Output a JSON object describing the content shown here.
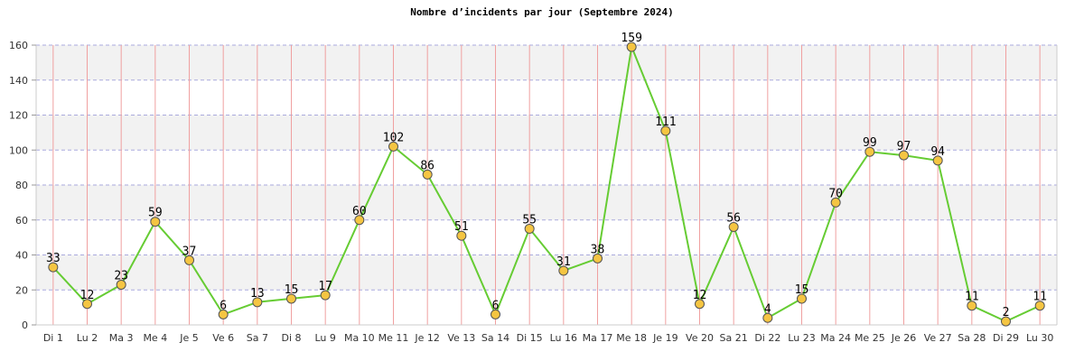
{
  "chart_data": {
    "type": "line",
    "title": "Nombre d’incidents par jour (Septembre 2024)",
    "xlabel": "",
    "ylabel": "",
    "ylim": [
      0,
      160
    ],
    "yticks": [
      0,
      20,
      40,
      60,
      80,
      100,
      120,
      140,
      160
    ],
    "grid": true,
    "categories": [
      "Di 1",
      "Lu 2",
      "Ma 3",
      "Me 4",
      "Je 5",
      "Ve 6",
      "Sa 7",
      "Di 8",
      "Lu 9",
      "Ma 10",
      "Me 11",
      "Je 12",
      "Ve 13",
      "Sa 14",
      "Di 15",
      "Lu 16",
      "Ma 17",
      "Me 18",
      "Je 19",
      "Ve 20",
      "Sa 21",
      "Di 22",
      "Lu 23",
      "Ma 24",
      "Me 25",
      "Je 26",
      "Ve 27",
      "Sa 28",
      "Di 29",
      "Lu 30"
    ],
    "series": [
      {
        "values": [
          33,
          12,
          23,
          59,
          37,
          6,
          13,
          15,
          17,
          60,
          102,
          86,
          51,
          6,
          55,
          31,
          38,
          159,
          111,
          12,
          56,
          4,
          15,
          70,
          99,
          97,
          94,
          11,
          2,
          11
        ]
      }
    ],
    "colors": {
      "line": "#66cc33",
      "marker_fill": "#f5c542",
      "marker_stroke": "#555555",
      "band_light": "#ffffff",
      "band_dark": "#f2f2f2",
      "hgrid": "#aaaadd",
      "vgrid": "#f0a0a0",
      "axis": "#cccccc"
    }
  }
}
